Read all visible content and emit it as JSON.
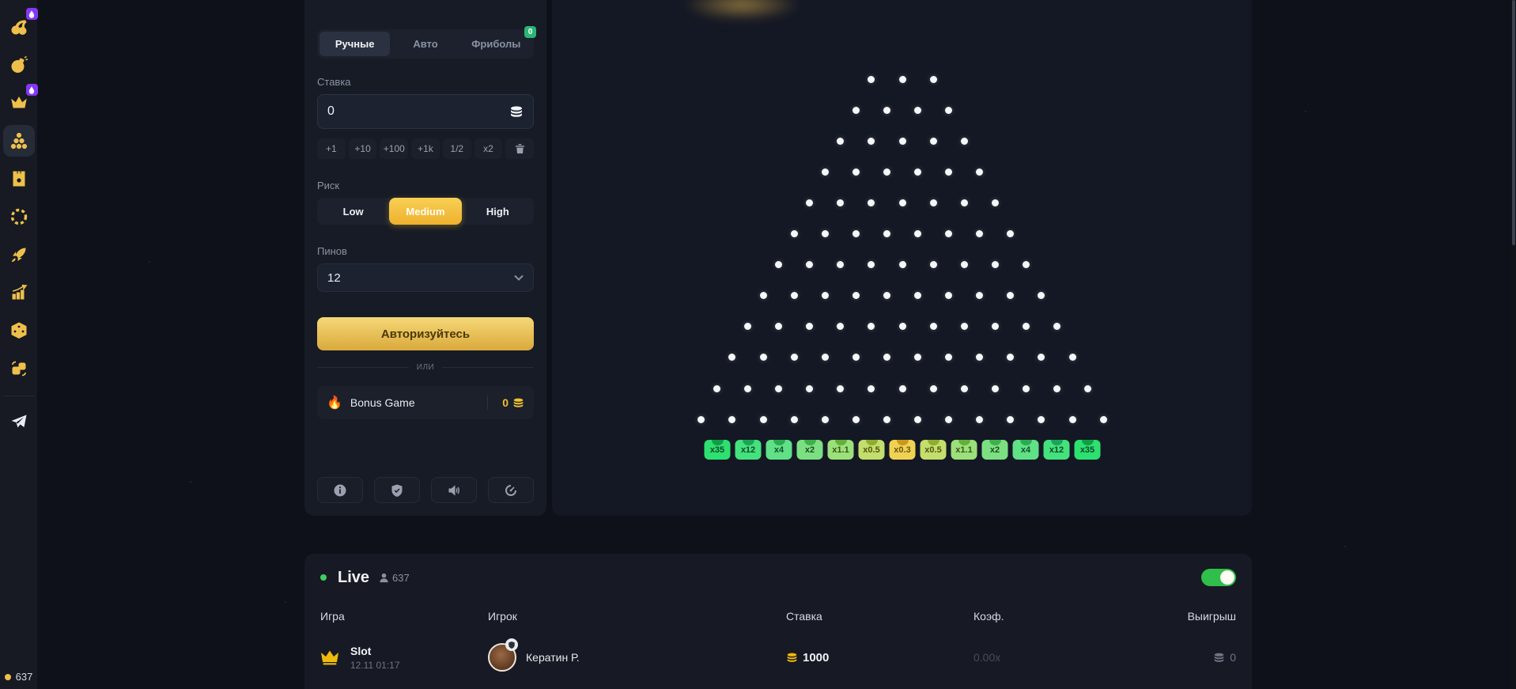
{
  "sidebar": {
    "items": [
      {
        "icon": "cherries-icon",
        "badge": true
      },
      {
        "icon": "bomb-icon",
        "badge": false
      },
      {
        "icon": "crown-icon",
        "badge": true
      },
      {
        "icon": "plinko-icon",
        "badge": false,
        "active": true
      },
      {
        "icon": "tower-icon",
        "badge": false
      },
      {
        "icon": "wheel-icon",
        "badge": false
      },
      {
        "icon": "rocket-icon",
        "badge": false
      },
      {
        "icon": "chart-icon",
        "badge": false
      },
      {
        "icon": "dice-icon",
        "badge": false
      },
      {
        "icon": "cards-icon",
        "badge": false
      }
    ],
    "telegram_icon": "telegram-icon",
    "online_count": "637"
  },
  "panel": {
    "tabs": [
      {
        "label": "Ручные",
        "active": true
      },
      {
        "label": "Авто",
        "active": false
      },
      {
        "label": "Фриболы",
        "active": false,
        "badge": "0"
      }
    ],
    "bet": {
      "label": "Ставка",
      "value": "0",
      "icon": "coins-icon"
    },
    "quick_buttons": [
      "+1",
      "+10",
      "+100",
      "+1k",
      "1/2",
      "x2"
    ],
    "trash_icon": "trash-icon",
    "risk": {
      "label": "Риск",
      "options": [
        "Low",
        "Medium",
        "High"
      ],
      "selected": "Medium"
    },
    "pins": {
      "label": "Пинов",
      "value": "12"
    },
    "login_button": "Авторизуйтесь",
    "or_divider": "или",
    "bonus": {
      "fire_icon": "🔥",
      "label": "Bonus Game",
      "value": "0"
    },
    "icon_buttons": [
      "info-icon",
      "shield-check-icon",
      "sound-icon",
      "speed-icon"
    ]
  },
  "board": {
    "peg_rows": 12,
    "top_pegs": 3,
    "peg_color": "#f5f7fa",
    "multipliers": [
      {
        "label": "x35",
        "bg": "#2ee06f",
        "notch": "#0f9e46",
        "fg": "#0e4a28"
      },
      {
        "label": "x12",
        "bg": "#44e17d",
        "notch": "#1aa556",
        "fg": "#0e4a28"
      },
      {
        "label": "x4",
        "bg": "#60e087",
        "notch": "#2aab52",
        "fg": "#14502c"
      },
      {
        "label": "x2",
        "bg": "#7ce082",
        "notch": "#3fb04b",
        "fg": "#1d4f22"
      },
      {
        "label": "x1.1",
        "bg": "#9be07b",
        "notch": "#62b03a",
        "fg": "#3a5414"
      },
      {
        "label": "x0.5",
        "bg": "#c3de6c",
        "notch": "#8fae2d",
        "fg": "#525410"
      },
      {
        "label": "x0.3",
        "bg": "#efd253",
        "notch": "#c79a1a",
        "fg": "#6b560e"
      },
      {
        "label": "x0.5",
        "bg": "#c3de6c",
        "notch": "#8fae2d",
        "fg": "#525410"
      },
      {
        "label": "x1.1",
        "bg": "#9be07b",
        "notch": "#62b03a",
        "fg": "#3a5414"
      },
      {
        "label": "x2",
        "bg": "#7ce082",
        "notch": "#3fb04b",
        "fg": "#1d4f22"
      },
      {
        "label": "x4",
        "bg": "#60e087",
        "notch": "#2aab52",
        "fg": "#14502c"
      },
      {
        "label": "x12",
        "bg": "#44e17d",
        "notch": "#1aa556",
        "fg": "#0e4a28"
      },
      {
        "label": "x35",
        "bg": "#2ee06f",
        "notch": "#0f9e46",
        "fg": "#0e4a28"
      }
    ]
  },
  "live": {
    "title": "Live",
    "count": "637",
    "toggle_on": true,
    "columns": [
      "Игра",
      "Игрок",
      "Ставка",
      "Коэф.",
      "Выигрыш"
    ],
    "rows": [
      {
        "game": "Slot",
        "time": "12.11 01:17",
        "player": "Кератин Р.",
        "bet": "1000",
        "coef": "0.00x",
        "win": "0"
      }
    ]
  },
  "colors": {
    "accent_gold": "#eec04b",
    "accent_yellow": "#f0b90b",
    "badge_green": "#2ab576",
    "toggle_green": "#2fbf4a",
    "live_dot": "#41cd63",
    "purple_badge": "#8438f5"
  }
}
